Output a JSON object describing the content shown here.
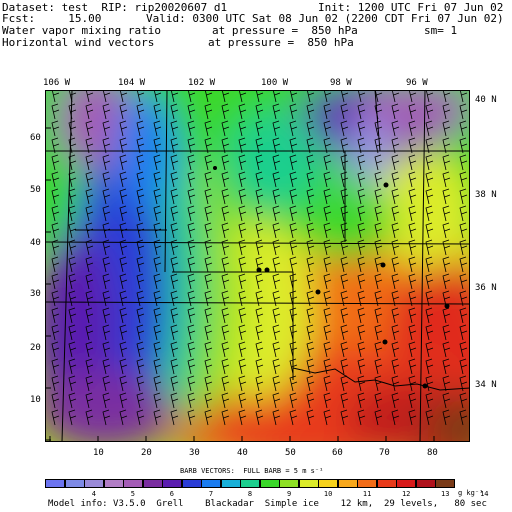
{
  "header": {
    "dataset": "Dataset: test  RIP: rip20020607 d1",
    "init": "Init: 1200 UTC Fri 07 Jun 02",
    "fcst": "Fcst:     15.00",
    "valid": "Valid: 0300 UTC Sat 08 Jun 02 (2200 CDT Fri 07 Jun 02)",
    "field1": "Water vapor mixing ratio",
    "field1_level": "at pressure =  850 hPa",
    "field1_sm": "sm= 1",
    "field2": "Horizontal wind vectors",
    "field2_level": "at pressure =  850 hPa"
  },
  "top_ticks": [
    "106 W",
    "104 W",
    "102 W",
    "100 W",
    "98 W",
    "96 W"
  ],
  "right_ticks": [
    "40 N",
    "38 N",
    "36 N",
    "34 N"
  ],
  "left_ticks": [
    "60",
    "50",
    "40",
    "30",
    "20",
    "10"
  ],
  "bottom_ticks": [
    "10",
    "20",
    "30",
    "40",
    "50",
    "60",
    "70",
    "80"
  ],
  "barb_caption": "BARB VECTORS:  FULL BARB = 5 m s⁻¹",
  "colorbar": {
    "colors": [
      "#6c74f0",
      "#7e8ae6",
      "#9a8ad8",
      "#b27ec6",
      "#a45cb6",
      "#7a2da0",
      "#5a1cb0",
      "#2a3cd6",
      "#1a7cf0",
      "#18b0d8",
      "#1ccf8e",
      "#3ad82a",
      "#8ee024",
      "#dcec2a",
      "#f6d21c",
      "#f8a81c",
      "#f26c18",
      "#e83a1a",
      "#d81a1a",
      "#b0121c",
      "#7a3a18"
    ],
    "labels": [
      "4",
      "5",
      "6",
      "7",
      "8",
      "9",
      "10",
      "11",
      "12",
      "13",
      "14"
    ],
    "unit": "g kg⁻¹"
  },
  "footer": "Model info: V3.5.0  Grell    Blackadar  Simple ice    12 km,  29 levels,   80 sec"
}
